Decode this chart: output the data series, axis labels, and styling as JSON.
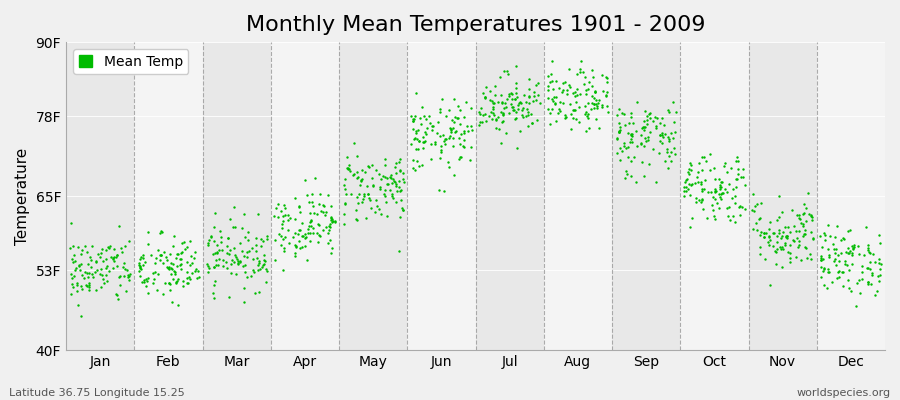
{
  "title": "Monthly Mean Temperatures 1901 - 2009",
  "ylabel": "Temperature",
  "xlabel": "",
  "background_color": "#f0f0f0",
  "band_colors": [
    "#e8e8e8",
    "#f4f4f4"
  ],
  "dot_color": "#00bb00",
  "dot_size": 3,
  "ylim": [
    40,
    90
  ],
  "yticks": [
    40,
    53,
    65,
    78,
    90
  ],
  "ytick_labels": [
    "40F",
    "53F",
    "65F",
    "78F",
    "90F"
  ],
  "months": [
    "Jan",
    "Feb",
    "Mar",
    "Apr",
    "May",
    "Jun",
    "Jul",
    "Aug",
    "Sep",
    "Oct",
    "Nov",
    "Dec"
  ],
  "month_means": [
    53.0,
    53.2,
    55.5,
    60.5,
    66.5,
    74.5,
    80.0,
    80.5,
    74.5,
    66.5,
    59.0,
    54.5
  ],
  "month_stds": [
    2.8,
    2.8,
    2.8,
    2.8,
    3.0,
    3.0,
    2.5,
    2.5,
    3.2,
    3.0,
    3.0,
    2.8
  ],
  "n_years": 109,
  "title_fontsize": 16,
  "axis_fontsize": 11,
  "tick_fontsize": 10,
  "legend_fontsize": 10,
  "footer_left": "Latitude 36.75 Longitude 15.25",
  "footer_right": "worldspecies.org",
  "footer_fontsize": 8,
  "gridline_color": "#999999",
  "spine_color": "#aaaaaa"
}
